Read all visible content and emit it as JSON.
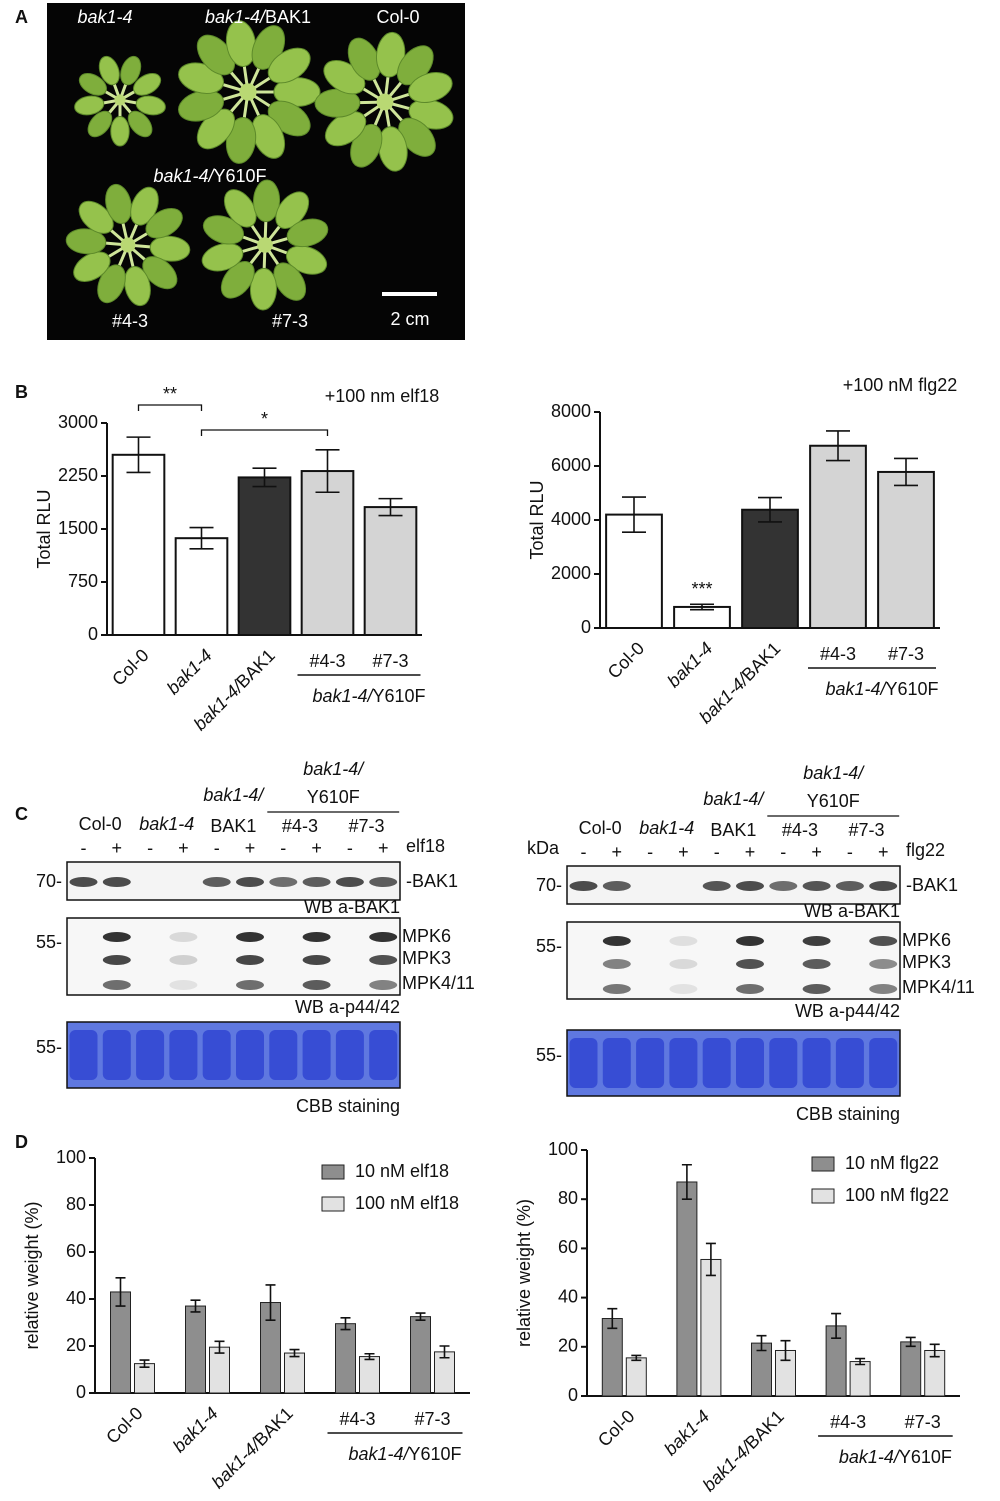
{
  "panel_labels": [
    "A",
    "B",
    "C",
    "D"
  ],
  "photo": {
    "labels": [
      "bak1-4",
      "bak1-4/BAK1",
      "Col-0",
      "bak1-4/Y610F",
      "#4-3",
      "#7-3"
    ],
    "scale_bar": "2 cm"
  },
  "chart_data": [
    {
      "type": "bar",
      "title": "+100 nm elf18",
      "ylabel": "Total RLU",
      "categories": [
        "Col-0",
        "bak1-4",
        "bak1-4/BAK1",
        "#4-3",
        "#7-3"
      ],
      "values": [
        2550,
        1370,
        2230,
        2320,
        1810
      ],
      "errors": [
        250,
        150,
        130,
        300,
        120
      ],
      "colors": [
        "#ffffff",
        "#ffffff",
        "#333333",
        "#d4d4d4",
        "#d4d4d4"
      ],
      "ylim": [
        0,
        3000
      ],
      "yticks": [
        0,
        750,
        1500,
        2250,
        3000
      ],
      "group_label": "bak1-4/Y610F",
      "annotations": [
        {
          "text": "**",
          "between": [
            "Col-0",
            "bak1-4"
          ]
        },
        {
          "text": "*",
          "between": [
            "bak1-4",
            "#4-3"
          ]
        }
      ]
    },
    {
      "type": "bar",
      "title": "+100 nM flg22",
      "ylabel": "Total RLU",
      "categories": [
        "Col-0",
        "bak1-4",
        "bak1-4/BAK1",
        "#4-3",
        "#7-3"
      ],
      "values": [
        4200,
        780,
        4380,
        6750,
        5780
      ],
      "errors": [
        650,
        100,
        450,
        550,
        500
      ],
      "colors": [
        "#ffffff",
        "#ffffff",
        "#333333",
        "#d4d4d4",
        "#d4d4d4"
      ],
      "ylim": [
        0,
        8000
      ],
      "yticks": [
        0,
        2000,
        4000,
        6000,
        8000
      ],
      "group_label": "bak1-4/Y610F",
      "annotations": [
        {
          "text": "***",
          "above": "bak1-4"
        }
      ]
    },
    {
      "type": "bar",
      "ylabel": "relative weight (%)",
      "categories": [
        "Col-0",
        "bak1-4",
        "bak1-4/BAK1",
        "#4-3",
        "#7-3"
      ],
      "series": [
        {
          "name": "10 nM elf18",
          "color": "#8e8e8e",
          "values": [
            43,
            37,
            38.5,
            29.5,
            32.5
          ],
          "errors": [
            6,
            2.5,
            7.5,
            2.5,
            1.5
          ]
        },
        {
          "name": "100 nM elf18",
          "color": "#e2e2e2",
          "values": [
            12.5,
            19.5,
            17,
            15.5,
            17.5
          ],
          "errors": [
            1.5,
            2.5,
            1.5,
            1.2,
            2.5
          ]
        }
      ],
      "ylim": [
        0,
        100
      ],
      "yticks": [
        0,
        20,
        40,
        60,
        80,
        100
      ],
      "group_label": "bak1-4/Y610F",
      "legend": "upper right"
    },
    {
      "type": "bar",
      "ylabel": "relative weight (%)",
      "categories": [
        "Col-0",
        "bak1-4",
        "bak1-4/BAK1",
        "#4-3",
        "#7-3"
      ],
      "series": [
        {
          "name": "10 nM flg22",
          "color": "#8e8e8e",
          "values": [
            31.5,
            87,
            21.5,
            28.5,
            22
          ],
          "errors": [
            4,
            7,
            3,
            5,
            1.8
          ]
        },
        {
          "name": "100 nM flg22",
          "color": "#e2e2e2",
          "values": [
            15.5,
            55.5,
            18.5,
            14,
            18.5
          ],
          "errors": [
            1,
            6.5,
            4,
            1.2,
            2.5
          ]
        }
      ],
      "ylim": [
        0,
        100
      ],
      "yticks": [
        0,
        20,
        40,
        60,
        80,
        100
      ],
      "group_label": "bak1-4/Y610F",
      "legend": "upper right"
    }
  ],
  "blots": [
    {
      "lanes": [
        "Col-0",
        "bak1-4"
      ],
      "bak1_label": [
        "bak1-4/",
        "BAK1"
      ],
      "mut_label": [
        "bak1-4/",
        "Y610F"
      ],
      "lines": [
        "#4-3",
        "#7-3"
      ],
      "signs": [
        "-",
        "+",
        "-",
        "+",
        "-",
        "+",
        "-",
        "+",
        "-",
        "+"
      ],
      "treatment": "elf18",
      "markers": [
        "70-",
        "55-",
        "55-"
      ],
      "bak1_band": "-BAK1",
      "mapk_bands": [
        "MPK6",
        "MPK3",
        "MPK4/11"
      ],
      "captions": [
        "WB a-BAK1",
        "WB a-p44/42",
        "CBB staining"
      ]
    },
    {
      "unit": "kDa",
      "lanes": [
        "Col-0",
        "bak1-4"
      ],
      "bak1_label": [
        "bak1-4/",
        "BAK1"
      ],
      "mut_label": [
        "bak1-4/",
        "Y610F"
      ],
      "lines": [
        "#4-3",
        "#7-3"
      ],
      "signs": [
        "-",
        "+",
        "-",
        "+",
        "-",
        "+",
        "-",
        "+",
        "-",
        "+"
      ],
      "treatment": "flg22",
      "markers": [
        "70-",
        "55-",
        "55-"
      ],
      "bak1_band": "-BAK1",
      "mapk_bands": [
        "MPK6",
        "MPK3",
        "MPK4/11"
      ],
      "captions": [
        "WB a-BAK1",
        "WB a-p44/42",
        "CBB staining"
      ]
    }
  ]
}
